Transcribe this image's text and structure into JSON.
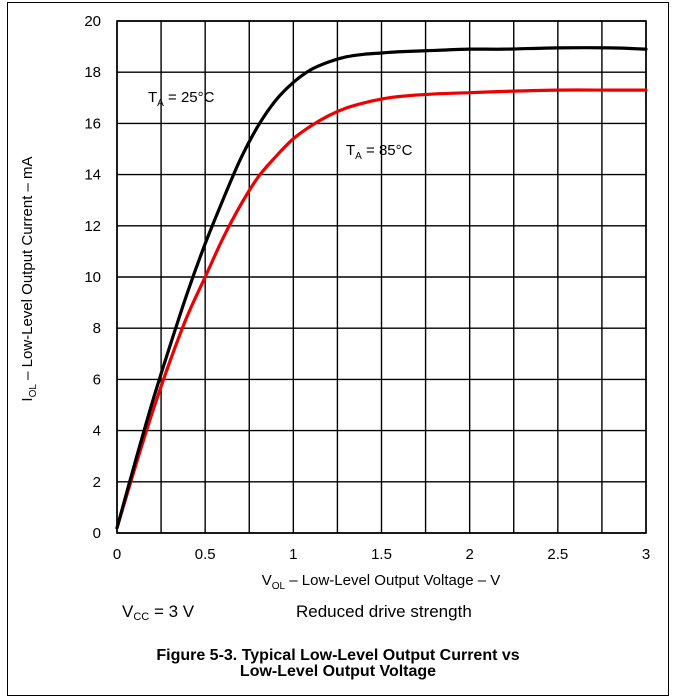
{
  "chart_data": {
    "type": "line",
    "xlabel": {
      "main": "V",
      "sub": "OL",
      "rest": " – Low-Level Output Voltage – V"
    },
    "ylabel": {
      "main": "I",
      "sub": "OL",
      "rest": " – Low-Level Output Current – mA"
    },
    "xlim": [
      0,
      3
    ],
    "ylim": [
      0,
      20
    ],
    "x_ticks": [
      0,
      0.5,
      1,
      1.5,
      2,
      2.5,
      3
    ],
    "x_tick_labels": [
      "0",
      "0.5",
      "1",
      "1.5",
      "2",
      "2.5",
      "3"
    ],
    "y_ticks": [
      0,
      2,
      4,
      6,
      8,
      10,
      12,
      14,
      16,
      18,
      20
    ],
    "y_tick_labels": [
      "0",
      "2",
      "4",
      "6",
      "8",
      "10",
      "12",
      "14",
      "16",
      "18",
      "20"
    ],
    "grid": true,
    "series": [
      {
        "label_main": "T",
        "label_sub": "A",
        "label_rest": " = 25°C",
        "color": "#000000",
        "x": [
          0,
          0.1,
          0.2,
          0.3,
          0.4,
          0.5,
          0.6,
          0.7,
          0.8,
          0.9,
          1.0,
          1.1,
          1.2,
          1.3,
          1.4,
          1.5,
          1.6,
          1.8,
          2.0,
          2.2,
          2.5,
          2.8,
          3.0
        ],
        "y": [
          0.2,
          2.7,
          5.1,
          7.3,
          9.4,
          11.3,
          13.0,
          14.6,
          15.9,
          16.9,
          17.6,
          18.1,
          18.4,
          18.6,
          18.7,
          18.75,
          18.8,
          18.85,
          18.9,
          18.9,
          18.95,
          18.95,
          18.9
        ]
      },
      {
        "label_main": "T",
        "label_sub": "A",
        "label_rest": " = 85°C",
        "color": "#ee0000",
        "x": [
          0,
          0.1,
          0.2,
          0.3,
          0.4,
          0.5,
          0.6,
          0.7,
          0.8,
          0.9,
          1.0,
          1.1,
          1.2,
          1.3,
          1.4,
          1.5,
          1.6,
          1.8,
          2.0,
          2.2,
          2.5,
          2.8,
          3.0
        ],
        "y": [
          0.2,
          2.5,
          4.7,
          6.7,
          8.5,
          10.0,
          11.5,
          12.8,
          13.9,
          14.7,
          15.4,
          15.9,
          16.3,
          16.6,
          16.8,
          16.95,
          17.05,
          17.15,
          17.2,
          17.25,
          17.3,
          17.3,
          17.3
        ]
      }
    ]
  },
  "conditions": {
    "vcc_main": "V",
    "vcc_sub": "CC",
    "vcc_rest": " = 3 V",
    "drive": "Reduced drive strength"
  },
  "caption": {
    "line1": "Figure 5-3. Typical Low-Level Output Current vs",
    "line2": "Low-Level Output Voltage"
  }
}
